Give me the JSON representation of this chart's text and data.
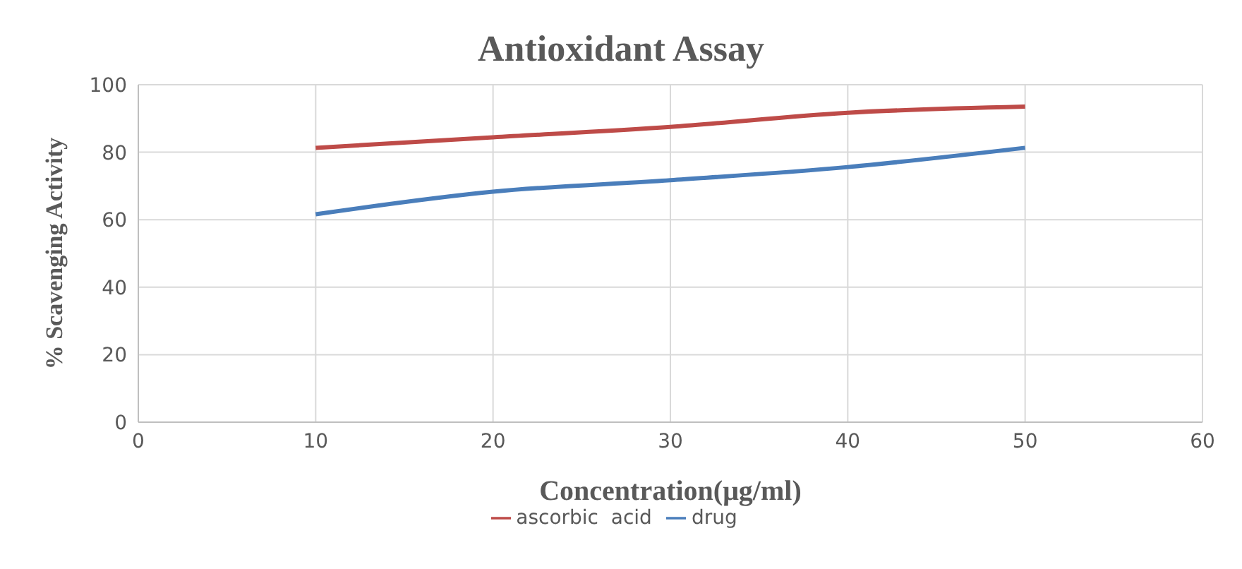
{
  "chart_data": {
    "type": "line",
    "title": "Antioxidant Assay",
    "xlabel": "Concentration(μg/ml)",
    "ylabel": "% Scavenging Activity",
    "x": [
      10,
      20,
      30,
      40,
      50
    ],
    "series": [
      {
        "name": "drug",
        "color": "#4a7ebb",
        "values": [
          61.6,
          68.3,
          71.7,
          75.6,
          81.3
        ]
      },
      {
        "name": "ascorbic  acid",
        "color": "#be4b48",
        "values": [
          81.3,
          84.4,
          87.5,
          91.7,
          93.5
        ]
      }
    ],
    "xlim": [
      0,
      60
    ],
    "xticks": [
      0,
      10,
      20,
      30,
      40,
      50,
      60
    ],
    "ylim": [
      0,
      100
    ],
    "yticks": [
      0,
      20,
      40,
      60,
      80,
      100
    ],
    "grid": true,
    "legend": "bottom",
    "marker": "none",
    "line_style": "solid"
  }
}
